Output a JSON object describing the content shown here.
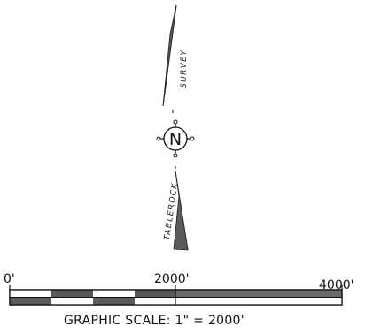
{
  "north_arrows": {
    "top_label": "SURVEY",
    "bottom_label": "TABLEROCK",
    "compass_letter": "N"
  },
  "scale_bar": {
    "ticks": [
      "0'",
      "2000'",
      "4000'"
    ],
    "caption": "GRAPHIC SCALE: 1\" = 2000'"
  },
  "colors": {
    "ink": "#111111",
    "shade": "#5a5a5a",
    "paper": "#ffffff"
  },
  "icons": {
    "compass": "north-compass-icon",
    "arrow": "north-arrow-icon"
  }
}
